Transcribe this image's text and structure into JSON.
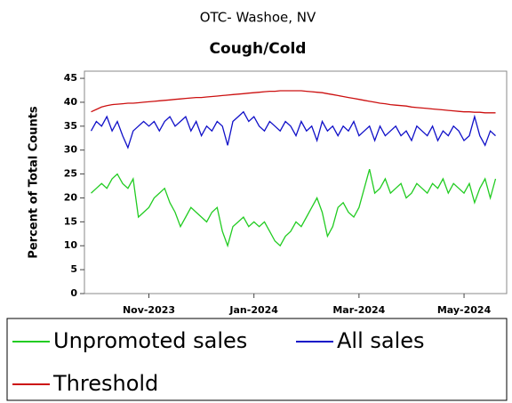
{
  "chart_data": {
    "type": "line",
    "title": "OTC- Washoe, NV",
    "subtitle": "Cough/Cold",
    "y_label": "Percent of Total Counts",
    "categories": [
      null,
      null,
      null,
      null,
      null,
      null,
      null,
      null,
      null,
      null,
      null,
      "Nov-2023",
      null,
      null,
      null,
      null,
      null,
      null,
      null,
      null,
      null,
      null,
      null,
      null,
      null,
      null,
      null,
      null,
      null,
      null,
      null,
      "Jan-2024",
      null,
      null,
      null,
      null,
      null,
      null,
      null,
      null,
      null,
      null,
      null,
      null,
      null,
      null,
      null,
      null,
      null,
      null,
      null,
      "Mar-2024",
      null,
      null,
      null,
      null,
      null,
      null,
      null,
      null,
      null,
      null,
      null,
      null,
      null,
      null,
      null,
      null,
      null,
      null,
      null,
      "May-2024",
      null,
      null,
      null,
      null,
      null,
      null
    ],
    "series": [
      {
        "name": "Unpromoted sales",
        "color": "#22cc22",
        "values": [
          21,
          22,
          23,
          22,
          24,
          25,
          23,
          22,
          24,
          16,
          17,
          18,
          20,
          21,
          22,
          19,
          17,
          14,
          16,
          18,
          17,
          16,
          15,
          17,
          18,
          13,
          10,
          14,
          15,
          16,
          14,
          15,
          14,
          15,
          13,
          11,
          10,
          12,
          13,
          15,
          14,
          16,
          18,
          20,
          17,
          12,
          14,
          18,
          19,
          17,
          16,
          18,
          22,
          26,
          21,
          22,
          24,
          21,
          22,
          23,
          20,
          21,
          23,
          22,
          21,
          23,
          22,
          24,
          21,
          23,
          22,
          21,
          23,
          19,
          22,
          24,
          20,
          24
        ]
      },
      {
        "name": "All sales",
        "color": "#1010c8",
        "values": [
          34,
          36,
          35,
          37,
          34,
          36,
          33,
          30.5,
          34,
          35,
          36,
          35,
          36,
          34,
          36,
          37,
          35,
          36,
          37,
          34,
          36,
          33,
          35,
          34,
          36,
          35,
          31,
          36,
          37,
          38,
          36,
          37,
          35,
          34,
          36,
          35,
          34,
          36,
          35,
          33,
          36,
          34,
          35,
          32,
          36,
          34,
          35,
          33,
          35,
          34,
          36,
          33,
          34,
          35,
          32,
          35,
          33,
          34,
          35,
          33,
          34,
          32,
          35,
          34,
          33,
          35,
          32,
          34,
          33,
          35,
          34,
          32,
          33,
          37,
          33,
          31,
          34,
          33
        ]
      },
      {
        "name": "Threshold",
        "color": "#cc1010",
        "values": [
          38.0,
          38.5,
          39.0,
          39.3,
          39.5,
          39.6,
          39.7,
          39.8,
          39.8,
          39.9,
          40.0,
          40.1,
          40.2,
          40.3,
          40.4,
          40.5,
          40.6,
          40.7,
          40.8,
          40.9,
          41.0,
          41.0,
          41.1,
          41.2,
          41.3,
          41.4,
          41.5,
          41.6,
          41.7,
          41.8,
          41.9,
          42.0,
          42.1,
          42.2,
          42.3,
          42.3,
          42.4,
          42.4,
          42.4,
          42.4,
          42.4,
          42.3,
          42.2,
          42.1,
          42.0,
          41.8,
          41.6,
          41.4,
          41.2,
          41.0,
          40.8,
          40.6,
          40.4,
          40.2,
          40.0,
          39.8,
          39.7,
          39.5,
          39.4,
          39.3,
          39.2,
          39.0,
          38.9,
          38.8,
          38.7,
          38.6,
          38.5,
          38.4,
          38.3,
          38.2,
          38.1,
          38.0,
          38.0,
          37.9,
          37.9,
          37.8,
          37.8,
          37.8
        ]
      }
    ],
    "ylim": [
      0,
      46.5
    ],
    "yticks": [
      0,
      5,
      10,
      15,
      20,
      25,
      30,
      35,
      40,
      45
    ]
  }
}
